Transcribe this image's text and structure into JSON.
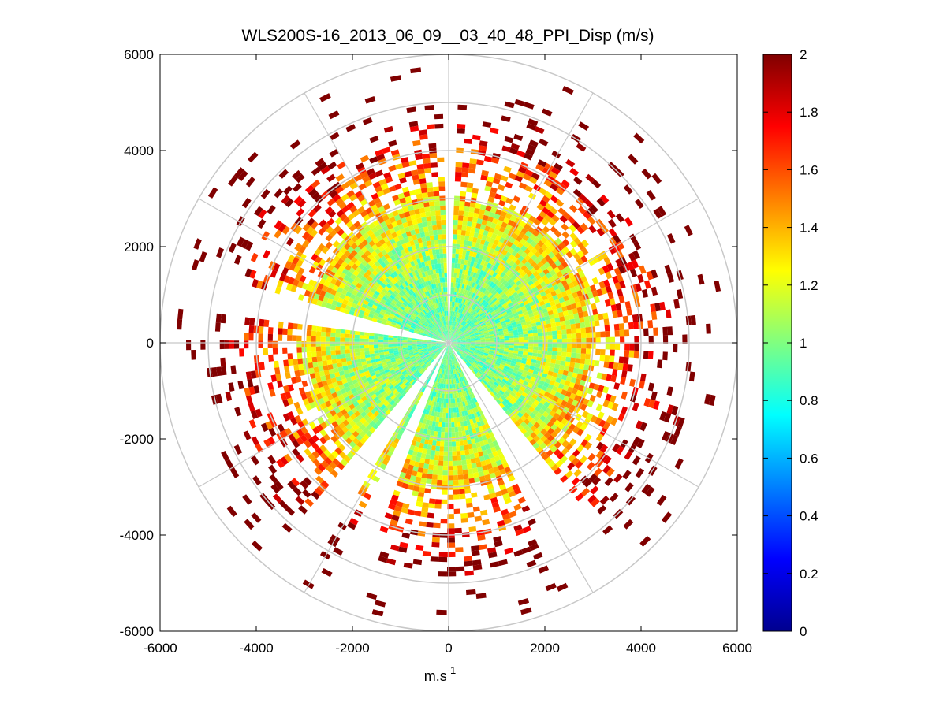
{
  "chart_data": {
    "type": "heatmap",
    "subtype": "polar-ppi",
    "title": "WLS200S-16_2013_06_09__03_40_48_PPI_Disp (m/s)",
    "xlabel_base": "m.s",
    "xlabel_sup": "-1",
    "ylabel": "",
    "xlim": [
      -6000,
      6000
    ],
    "ylim": [
      -6000,
      6000
    ],
    "xticks": [
      -6000,
      -4000,
      -2000,
      0,
      2000,
      4000,
      6000
    ],
    "yticks": [
      6000,
      4000,
      2000,
      0,
      -2000,
      -4000,
      -6000
    ],
    "polar_grid": {
      "rings": [
        1000,
        2000,
        3000,
        4000,
        5000,
        6000
      ],
      "spokes_deg": [
        0,
        30,
        60,
        90,
        120,
        150,
        180,
        210,
        240,
        270,
        300,
        330
      ],
      "color": "#c8c8c8"
    },
    "colorbar": {
      "range": [
        0,
        2
      ],
      "ticks": [
        0,
        0.2,
        0.4,
        0.6,
        0.8,
        1,
        1.2,
        1.4,
        1.6,
        1.8,
        2
      ],
      "colormap": "jet"
    },
    "data_summary": {
      "max_range_m": 5800,
      "inner_core_value": 0.95,
      "outer_edge_value": 2.0,
      "empty_sectors_deg": [
        [
          -2,
          2
        ],
        [
          140,
          152
        ],
        [
          198,
          206
        ],
        [
          210,
          218
        ],
        [
          275,
          285
        ]
      ]
    }
  }
}
